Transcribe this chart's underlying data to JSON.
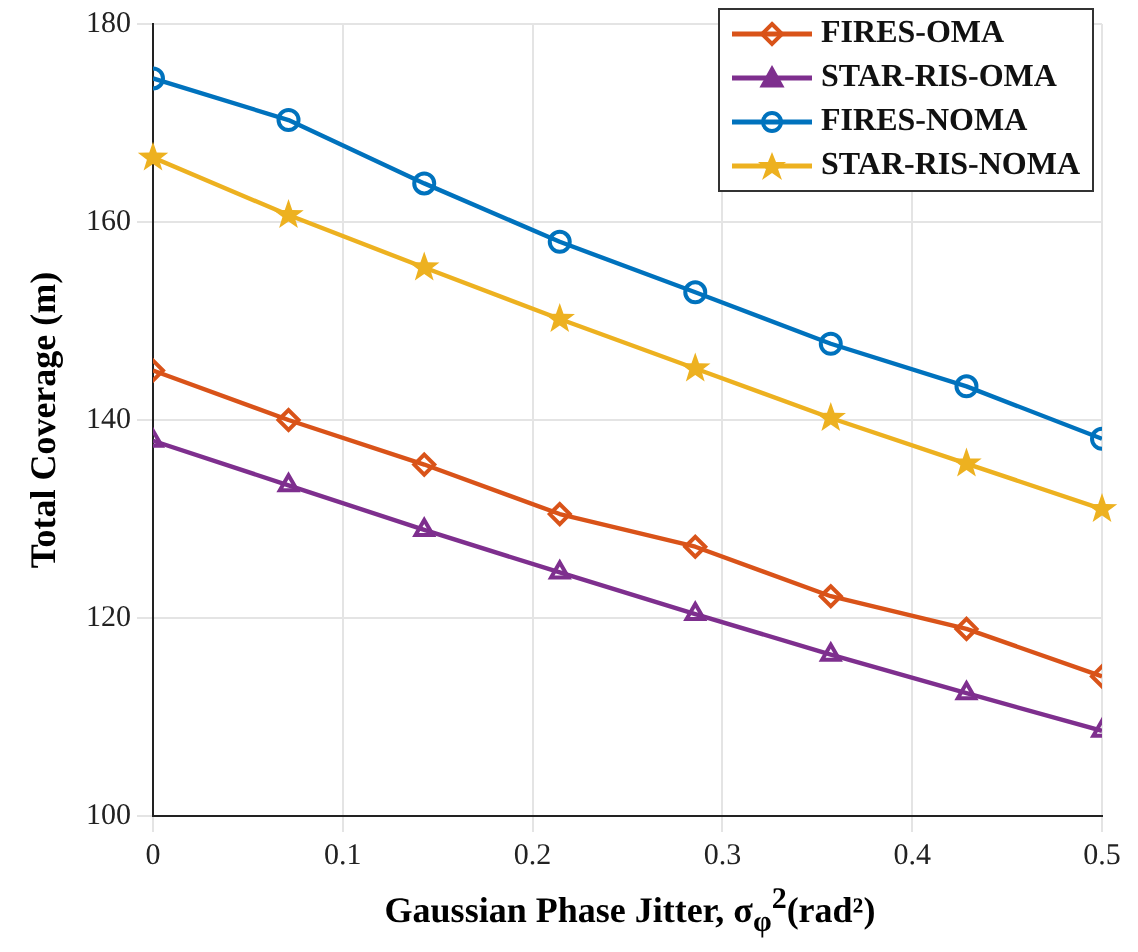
{
  "chart_data": {
    "type": "line",
    "xlabel": "Gaussian Phase Jitter, σ$_{φ}$$^{2}$(rad²)",
    "ylabel": "Total Coverage (m)",
    "x": [
      0,
      0.0714,
      0.1429,
      0.2143,
      0.2857,
      0.3571,
      0.4286,
      0.5
    ],
    "xlim": [
      0,
      0.5
    ],
    "xticks": [
      0,
      0.1,
      0.2,
      0.3,
      0.4,
      0.5
    ],
    "ylim": [
      100,
      180
    ],
    "yticks": [
      100,
      120,
      140,
      160,
      180
    ],
    "grid": true,
    "legend": "top right",
    "series": [
      {
        "name": "FIRES-OMA",
        "color": "#d95319",
        "marker": "diamond",
        "values": [
          145.0,
          140.0,
          135.5,
          130.5,
          127.2,
          122.2,
          118.9,
          114.1
        ]
      },
      {
        "name": "STAR-RIS-OMA",
        "color": "#7e2f8e",
        "marker": "triangle",
        "values": [
          137.9,
          133.4,
          128.9,
          124.6,
          120.4,
          116.3,
          112.4,
          108.6
        ]
      },
      {
        "name": "FIRES-NOMA",
        "color": "#0072bd",
        "marker": "circle",
        "values": [
          174.5,
          170.3,
          163.9,
          158.0,
          152.9,
          147.7,
          143.4,
          138.1
        ]
      },
      {
        "name": "STAR-RIS-NOMA",
        "color": "#edb120",
        "marker": "star",
        "values": [
          166.5,
          160.7,
          155.4,
          150.2,
          145.2,
          140.2,
          135.6,
          131.0
        ]
      }
    ]
  }
}
